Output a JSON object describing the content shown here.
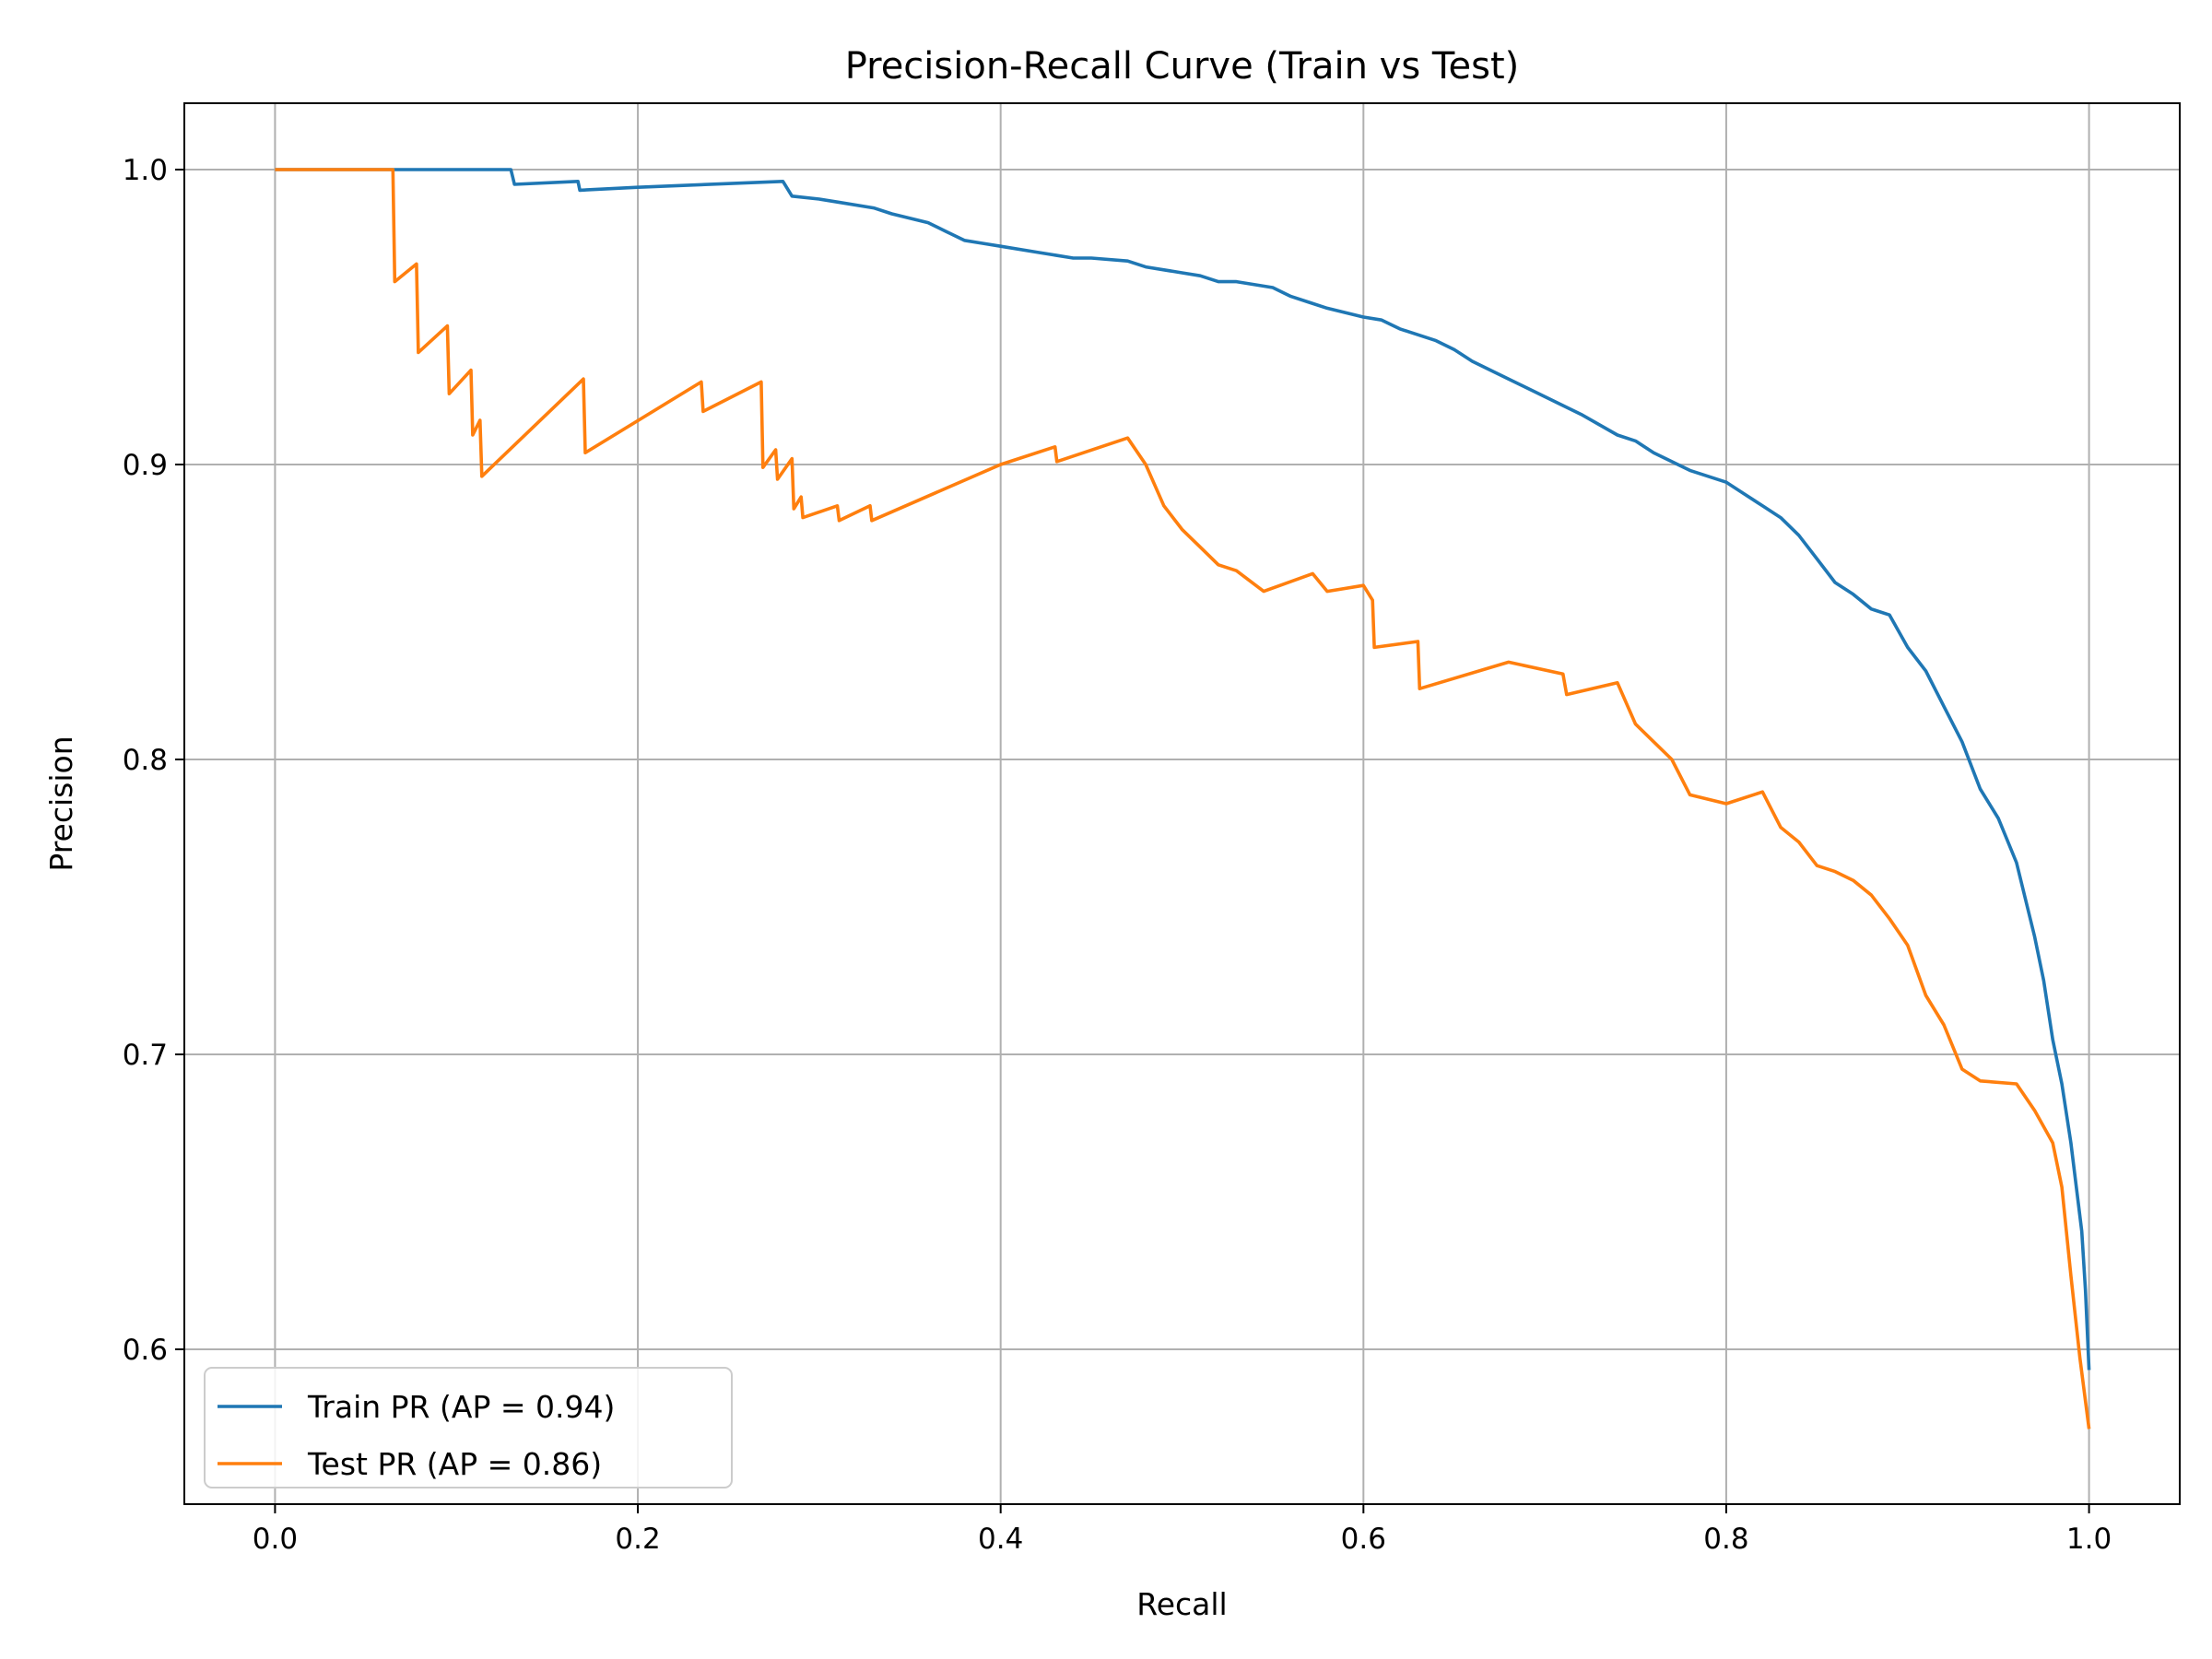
{
  "chart_data": {
    "type": "line",
    "title": "Precision-Recall Curve (Train vs Test)",
    "xlabel": "Recall",
    "ylabel": "Precision",
    "xlim": [
      -0.05,
      1.05
    ],
    "ylim": [
      0.5475,
      1.0225
    ],
    "xticks": [
      0.0,
      0.2,
      0.4,
      0.6,
      0.8,
      1.0
    ],
    "xtick_labels": [
      "0.0",
      "0.2",
      "0.4",
      "0.6",
      "0.8",
      "1.0"
    ],
    "yticks": [
      0.6,
      0.7,
      0.8,
      0.9,
      1.0
    ],
    "ytick_labels": [
      "0.6",
      "0.7",
      "0.8",
      "0.9",
      "1.0"
    ],
    "grid": true,
    "legend_position": "lower-left",
    "series": [
      {
        "name": "Train PR (AP = 0.94)",
        "color": "#1f77b4",
        "x": [
          0.0,
          0.13,
          0.132,
          0.167,
          0.168,
          0.2,
          0.28,
          0.285,
          0.3,
          0.31,
          0.33,
          0.34,
          0.36,
          0.37,
          0.38,
          0.39,
          0.4,
          0.42,
          0.43,
          0.44,
          0.45,
          0.47,
          0.48,
          0.49,
          0.5,
          0.51,
          0.52,
          0.53,
          0.55,
          0.56,
          0.57,
          0.58,
          0.6,
          0.61,
          0.62,
          0.64,
          0.65,
          0.66,
          0.67,
          0.68,
          0.7,
          0.71,
          0.72,
          0.74,
          0.75,
          0.76,
          0.78,
          0.8,
          0.81,
          0.82,
          0.83,
          0.84,
          0.85,
          0.86,
          0.87,
          0.88,
          0.89,
          0.9,
          0.91,
          0.92,
          0.93,
          0.94,
          0.95,
          0.96,
          0.97,
          0.975,
          0.98,
          0.985,
          0.99,
          0.993,
          0.996,
          0.998,
          1.0
        ],
        "y": [
          1.0,
          1.0,
          0.995,
          0.996,
          0.993,
          0.994,
          0.996,
          0.991,
          0.99,
          0.989,
          0.987,
          0.985,
          0.982,
          0.979,
          0.976,
          0.975,
          0.974,
          0.972,
          0.971,
          0.97,
          0.97,
          0.969,
          0.967,
          0.966,
          0.965,
          0.964,
          0.962,
          0.962,
          0.96,
          0.957,
          0.955,
          0.953,
          0.95,
          0.949,
          0.946,
          0.942,
          0.939,
          0.935,
          0.932,
          0.929,
          0.923,
          0.92,
          0.917,
          0.91,
          0.908,
          0.904,
          0.898,
          0.894,
          0.89,
          0.886,
          0.882,
          0.876,
          0.868,
          0.86,
          0.856,
          0.851,
          0.849,
          0.838,
          0.83,
          0.818,
          0.806,
          0.79,
          0.78,
          0.765,
          0.74,
          0.725,
          0.705,
          0.69,
          0.67,
          0.655,
          0.64,
          0.62,
          0.593
        ]
      },
      {
        "name": "Test PR (AP = 0.86)",
        "color": "#ff7f0e",
        "x": [
          0.0,
          0.065,
          0.066,
          0.078,
          0.079,
          0.095,
          0.096,
          0.108,
          0.109,
          0.113,
          0.114,
          0.17,
          0.171,
          0.235,
          0.236,
          0.268,
          0.269,
          0.276,
          0.277,
          0.285,
          0.286,
          0.29,
          0.291,
          0.31,
          0.311,
          0.328,
          0.329,
          0.4,
          0.43,
          0.431,
          0.47,
          0.48,
          0.49,
          0.5,
          0.51,
          0.52,
          0.53,
          0.545,
          0.572,
          0.58,
          0.6,
          0.605,
          0.606,
          0.63,
          0.631,
          0.68,
          0.71,
          0.712,
          0.74,
          0.75,
          0.76,
          0.77,
          0.78,
          0.8,
          0.82,
          0.83,
          0.84,
          0.85,
          0.86,
          0.87,
          0.88,
          0.89,
          0.9,
          0.91,
          0.92,
          0.93,
          0.94,
          0.96,
          0.97,
          0.98,
          0.985,
          0.99,
          0.995,
          1.0
        ],
        "y": [
          1.0,
          1.0,
          0.962,
          0.968,
          0.938,
          0.947,
          0.924,
          0.932,
          0.91,
          0.915,
          0.896,
          0.929,
          0.904,
          0.928,
          0.918,
          0.928,
          0.899,
          0.905,
          0.895,
          0.902,
          0.885,
          0.889,
          0.882,
          0.886,
          0.881,
          0.886,
          0.881,
          0.9,
          0.906,
          0.901,
          0.909,
          0.9,
          0.886,
          0.878,
          0.872,
          0.866,
          0.864,
          0.857,
          0.863,
          0.857,
          0.859,
          0.854,
          0.838,
          0.84,
          0.824,
          0.833,
          0.829,
          0.822,
          0.826,
          0.812,
          0.806,
          0.8,
          0.788,
          0.785,
          0.789,
          0.777,
          0.772,
          0.764,
          0.762,
          0.759,
          0.754,
          0.746,
          0.737,
          0.72,
          0.71,
          0.695,
          0.691,
          0.69,
          0.681,
          0.67,
          0.655,
          0.625,
          0.597,
          0.573
        ]
      }
    ]
  }
}
